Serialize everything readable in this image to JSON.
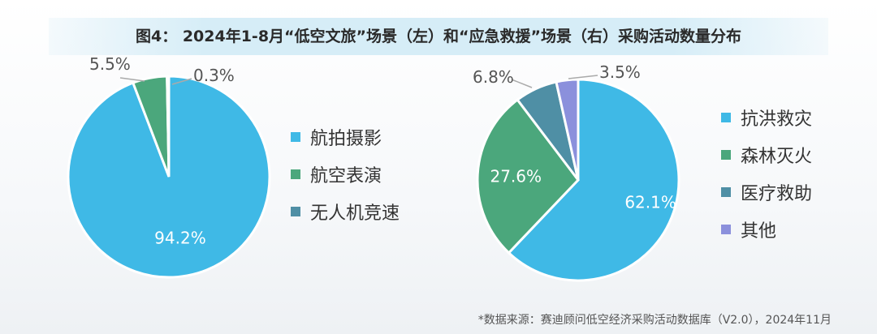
{
  "title": "图4： 2024年1-8月“低空文旅”场景（左）和“应急救援”场景（右）采购活动数量分布",
  "footer": "*数据来源：赛迪顾问低空经济采购活动数据库（V2.0），2024年11月",
  "chart_data": [
    {
      "type": "pie",
      "categories": [
        "航拍摄影",
        "航空表演",
        "无人机竞速"
      ],
      "values": [
        94.2,
        5.5,
        0.3
      ],
      "labels": [
        "94.2%",
        "5.5%",
        "0.3%"
      ],
      "colors": [
        "#3fb9e6",
        "#4ba77c",
        "#4f8fa5"
      ],
      "legend": "right"
    },
    {
      "type": "pie",
      "categories": [
        "抗洪救灾",
        "森林灭火",
        "医疗救助",
        "其他"
      ],
      "values": [
        62.1,
        27.6,
        6.8,
        3.5
      ],
      "labels": [
        "62.1%",
        "27.6%",
        "6.8%",
        "3.5%"
      ],
      "colors": [
        "#3fb9e6",
        "#4ba77c",
        "#4f8fa5",
        "#8b90dc"
      ],
      "legend": "right"
    }
  ]
}
